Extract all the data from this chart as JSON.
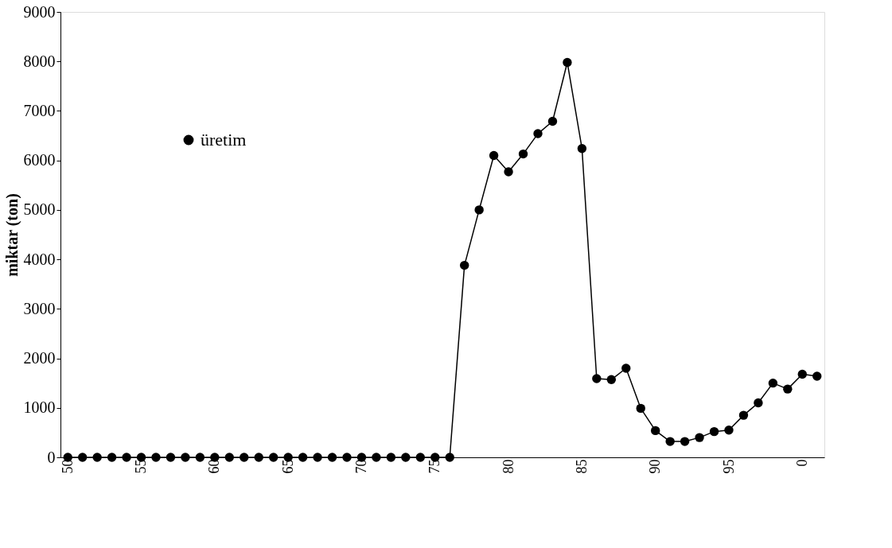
{
  "chart_data": {
    "type": "line",
    "ylabel": "miktar (ton)",
    "categories": [
      "50",
      null,
      null,
      null,
      null,
      "55",
      null,
      null,
      null,
      null,
      "60",
      null,
      null,
      null,
      null,
      "65",
      null,
      null,
      null,
      null,
      "70",
      null,
      null,
      null,
      null,
      "75",
      null,
      null,
      null,
      null,
      "80",
      null,
      null,
      null,
      null,
      "85",
      null,
      null,
      null,
      null,
      "90",
      null,
      null,
      null,
      null,
      "95",
      null,
      null,
      null,
      null,
      "0",
      null
    ],
    "series": [
      {
        "name": "üretim",
        "color": "#000000",
        "values": [
          0,
          0,
          0,
          0,
          0,
          0,
          0,
          0,
          0,
          0,
          0,
          0,
          0,
          0,
          0,
          0,
          0,
          0,
          0,
          0,
          0,
          0,
          0,
          0,
          0,
          0,
          0,
          3880,
          5000,
          6100,
          5770,
          6130,
          6540,
          6790,
          7980,
          6240,
          1590,
          1570,
          1800,
          990,
          540,
          320,
          320,
          400,
          520,
          550,
          850,
          1100,
          1500,
          1380,
          1680,
          1640
        ]
      }
    ],
    "ylim": [
      0,
      9000
    ],
    "yticks": [
      0,
      1000,
      2000,
      3000,
      4000,
      5000,
      6000,
      7000,
      8000,
      9000
    ],
    "grid": false,
    "legend": "top left",
    "marker": "circle",
    "line_style": "solid"
  }
}
